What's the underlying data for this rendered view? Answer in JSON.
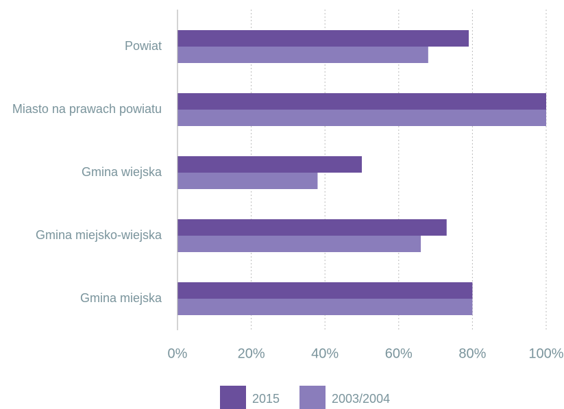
{
  "chart_data": {
    "type": "hbar",
    "categories": [
      "Powiat",
      "Miasto na prawach powiatu",
      "Gmina wiejska",
      "Gmina miejsko-wiejska",
      "Gmina miejska"
    ],
    "series": [
      {
        "name": "2015",
        "color": "#6a4f9c",
        "values": [
          79,
          100,
          50,
          73,
          80
        ]
      },
      {
        "name": "2003/2004",
        "color": "#8a7dbb",
        "values": [
          68,
          100,
          38,
          66,
          80
        ]
      }
    ],
    "xlim": [
      0,
      100
    ],
    "xticks": [
      {
        "value": 0,
        "label": "0%"
      },
      {
        "value": 20,
        "label": "20%"
      },
      {
        "value": 40,
        "label": "40%"
      },
      {
        "value": 60,
        "label": "60%"
      },
      {
        "value": 80,
        "label": "80%"
      },
      {
        "value": 100,
        "label": "100%"
      }
    ],
    "grid": true,
    "legend": "bottom"
  }
}
